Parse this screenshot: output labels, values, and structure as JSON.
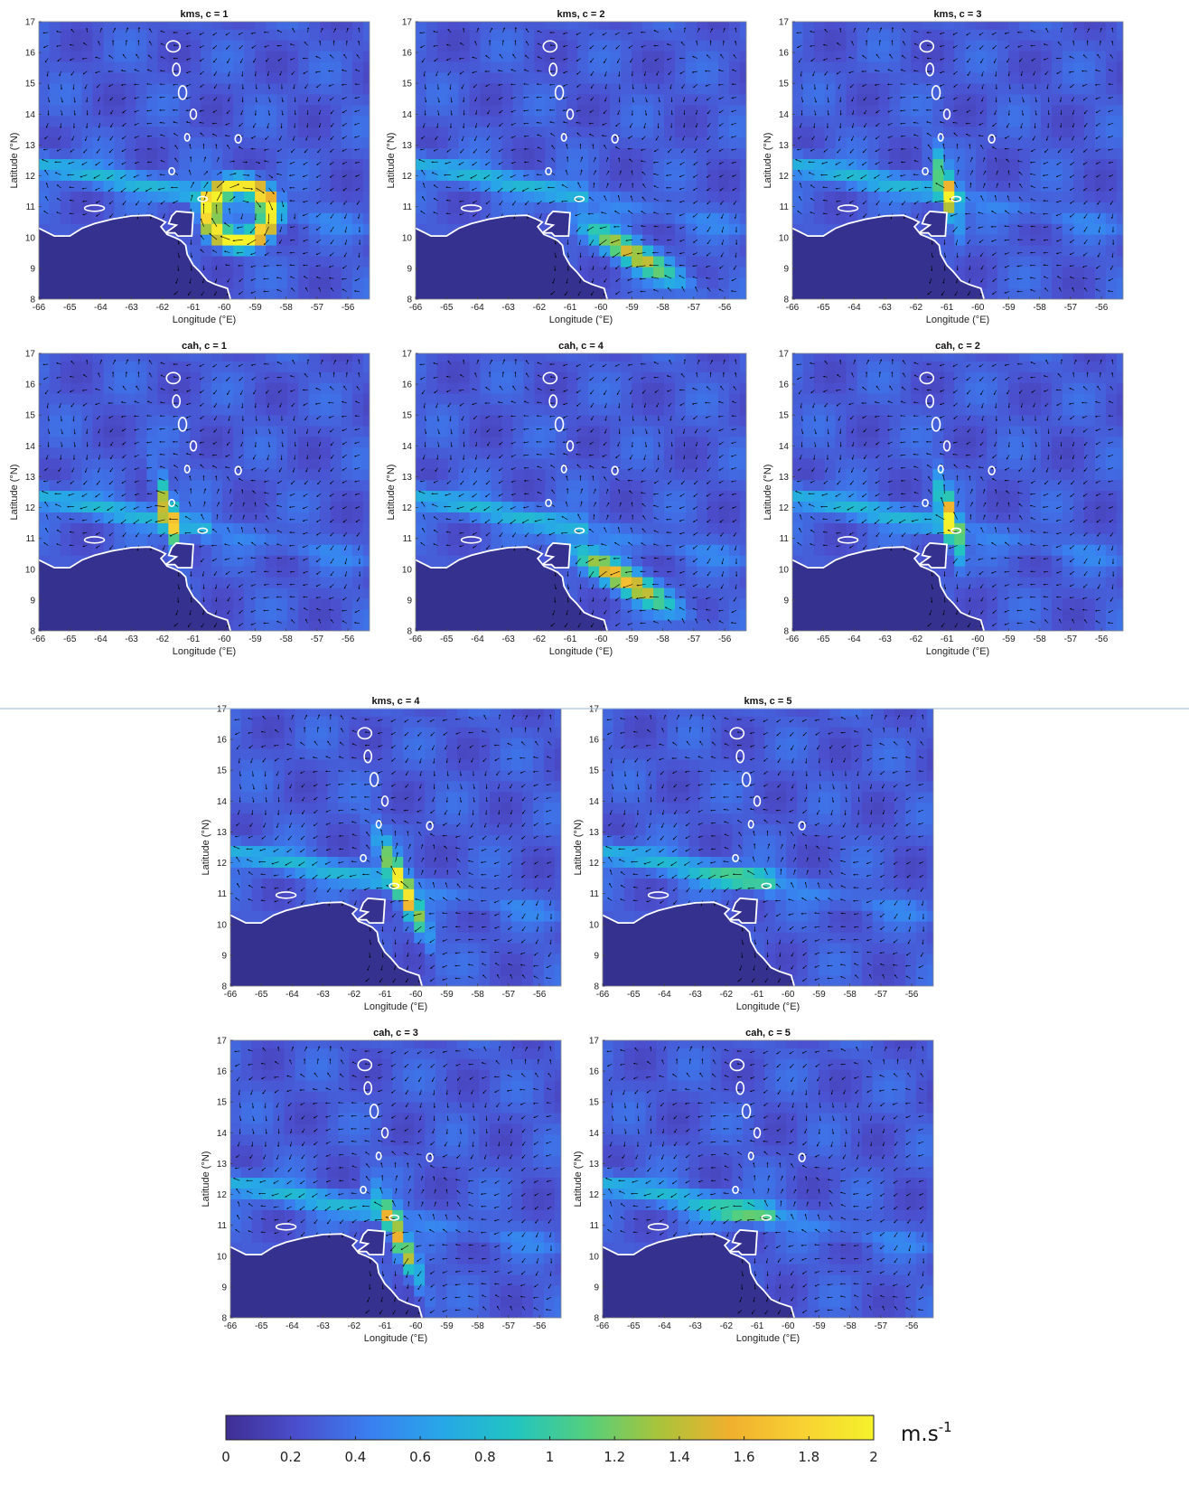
{
  "panels": [
    {
      "title": "kms, c = 1",
      "core": {
        "type": "eddy",
        "lon": -59.5,
        "lat": 10.8,
        "strength": 1.7
      }
    },
    {
      "title": "kms, c = 2",
      "core": {
        "type": "plume",
        "lon": -59.0,
        "lat": 9.5,
        "strength": 1.2
      }
    },
    {
      "title": "kms, c = 3",
      "core": {
        "type": "jet",
        "lon": -61.0,
        "lat": 11.5,
        "strength": 1.4
      }
    },
    {
      "title": "cah, c = 1",
      "core": {
        "type": "jet",
        "lon": -61.8,
        "lat": 11.8,
        "strength": 1.5
      }
    },
    {
      "title": "cah, c = 4",
      "core": {
        "type": "plume",
        "lon": -59.3,
        "lat": 9.7,
        "strength": 1.4
      }
    },
    {
      "title": "cah, c = 2",
      "core": {
        "type": "jet",
        "lon": -60.9,
        "lat": 11.6,
        "strength": 1.6
      }
    },
    {
      "title": "kms, c = 4",
      "core": {
        "type": "arc",
        "lon": -60.4,
        "lat": 11.2,
        "strength": 1.7
      }
    },
    {
      "title": "kms, c = 5",
      "core": {
        "type": "weak",
        "lon": -61.5,
        "lat": 11.5,
        "strength": 0.8
      }
    },
    {
      "title": "cah, c = 3",
      "core": {
        "type": "arc",
        "lon": -60.5,
        "lat": 10.5,
        "strength": 1.3
      }
    },
    {
      "title": "cah, c = 5",
      "core": {
        "type": "weak",
        "lon": -61.5,
        "lat": 11.4,
        "strength": 0.9
      }
    }
  ],
  "axes": {
    "xlabel": "Longitude (°E)",
    "ylabel": "Latitude (°N)",
    "xlim": [
      -66,
      -55.3
    ],
    "ylim": [
      8,
      17
    ],
    "xticks": [
      "-66",
      "-65",
      "-64",
      "-63",
      "-62",
      "-61",
      "-60",
      "-59",
      "-58",
      "-57",
      "-56"
    ],
    "yticks": [
      "8",
      "9",
      "10",
      "11",
      "12",
      "13",
      "14",
      "15",
      "16",
      "17"
    ]
  },
  "colorbar": {
    "min": 0,
    "max": 2,
    "ticks": [
      "0",
      "0.2",
      "0.4",
      "0.6",
      "0.8",
      "1",
      "1.2",
      "1.4",
      "1.6",
      "1.8",
      "2"
    ],
    "unit_base": "m.s",
    "unit_exp": "-1",
    "colormap": [
      "#3e2e93",
      "#4b4fce",
      "#3a7ff0",
      "#27a7e8",
      "#21c4c2",
      "#53cf7e",
      "#a8c43a",
      "#f0b02e",
      "#f8d133",
      "#f5f22a"
    ]
  },
  "colors": {
    "ocean_background": "#3e46b2",
    "land": "#35318f",
    "coast": "#ffffff",
    "separator": "#9bb6d6"
  }
}
